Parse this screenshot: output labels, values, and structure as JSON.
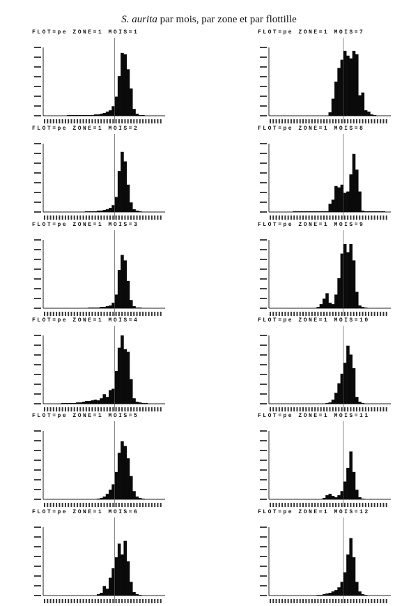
{
  "title": {
    "italic": "S. aurita",
    "rest": " par mois, par zone et par flottille"
  },
  "chart_data": [
    {
      "type": "bar",
      "title": "FLOT=pe ZONE=1 MOIS=1",
      "reference_bin": 24,
      "values": [
        0,
        0,
        0,
        0,
        0,
        0,
        0,
        0,
        1,
        1,
        1,
        1,
        1,
        1,
        1,
        1,
        1,
        2,
        2,
        3,
        4,
        6,
        8,
        14,
        28,
        58,
        92,
        90,
        68,
        40,
        10,
        3,
        1,
        1,
        0,
        0,
        0,
        0,
        0,
        0
      ]
    },
    {
      "type": "bar",
      "title": "FLOT=pe ZONE=1 MOIS=2",
      "reference_bin": 24,
      "values": [
        0,
        0,
        0,
        0,
        0,
        0,
        0,
        0,
        0,
        0,
        0,
        0,
        0,
        0,
        1,
        1,
        1,
        1,
        2,
        2,
        3,
        4,
        6,
        10,
        22,
        60,
        88,
        74,
        40,
        14,
        4,
        2,
        1,
        0,
        0,
        0,
        0,
        0,
        0,
        0
      ]
    },
    {
      "type": "bar",
      "title": "FLOT=pe ZONE=1 MOIS=3",
      "reference_bin": 24,
      "values": [
        0,
        0,
        0,
        0,
        0,
        0,
        0,
        0,
        0,
        0,
        0,
        0,
        0,
        0,
        0,
        1,
        1,
        1,
        1,
        2,
        2,
        3,
        4,
        8,
        20,
        56,
        78,
        70,
        40,
        12,
        3,
        1,
        1,
        0,
        0,
        0,
        0,
        0,
        0,
        0
      ]
    },
    {
      "type": "bar",
      "title": "FLOT=pe ZONE=1 MOIS=4",
      "reference_bin": 24,
      "values": [
        0,
        0,
        0,
        0,
        0,
        0,
        1,
        1,
        1,
        1,
        1,
        2,
        2,
        3,
        4,
        4,
        5,
        6,
        5,
        8,
        14,
        10,
        20,
        22,
        48,
        82,
        100,
        80,
        76,
        36,
        8,
        3,
        2,
        1,
        1,
        0,
        0,
        0,
        0,
        0
      ]
    },
    {
      "type": "bar",
      "title": "FLOT=pe ZONE=1 MOIS=5",
      "reference_bin": 24,
      "values": [
        0,
        0,
        0,
        0,
        0,
        0,
        0,
        0,
        0,
        0,
        0,
        0,
        0,
        0,
        0,
        0,
        0,
        0,
        1,
        2,
        4,
        8,
        14,
        22,
        40,
        68,
        85,
        78,
        60,
        34,
        12,
        4,
        2,
        1,
        0,
        0,
        0,
        0,
        0,
        0
      ]
    },
    {
      "type": "bar",
      "title": "FLOT=pe ZONE=1 MOIS=6",
      "reference_bin": 24,
      "values": [
        0,
        0,
        0,
        0,
        0,
        0,
        0,
        0,
        0,
        0,
        0,
        0,
        0,
        0,
        0,
        0,
        0,
        0,
        2,
        4,
        14,
        10,
        26,
        40,
        56,
        76,
        60,
        80,
        50,
        20,
        5,
        2,
        1,
        0,
        0,
        0,
        0,
        0,
        0,
        0
      ]
    },
    {
      "type": "bar",
      "title": "FLOT=pe ZONE=1 MOIS=7",
      "reference_bin": 25,
      "values": [
        0,
        0,
        0,
        0,
        0,
        0,
        0,
        0,
        0,
        0,
        0,
        0,
        0,
        0,
        0,
        0,
        0,
        0,
        0,
        0,
        5,
        25,
        50,
        70,
        82,
        95,
        88,
        84,
        95,
        90,
        30,
        34,
        8,
        6,
        2,
        1,
        0,
        0,
        0,
        0
      ]
    },
    {
      "type": "bar",
      "title": "FLOT=pe ZONE=1 MOIS=8",
      "reference_bin": 25,
      "values": [
        0,
        0,
        0,
        0,
        0,
        0,
        0,
        0,
        1,
        1,
        1,
        1,
        1,
        1,
        1,
        1,
        1,
        1,
        1,
        1,
        12,
        18,
        38,
        36,
        40,
        28,
        30,
        55,
        85,
        62,
        30,
        2,
        1,
        1,
        1,
        1,
        1,
        1,
        1,
        0
      ]
    },
    {
      "type": "bar",
      "title": "FLOT=pe ZONE=1 MOIS=9",
      "reference_bin": 25,
      "values": [
        0,
        0,
        0,
        0,
        0,
        0,
        0,
        0,
        0,
        0,
        0,
        0,
        0,
        0,
        0,
        0,
        2,
        6,
        14,
        22,
        8,
        6,
        20,
        44,
        80,
        94,
        82,
        94,
        70,
        24,
        4,
        2,
        1,
        0,
        0,
        0,
        0,
        0,
        0,
        0
      ]
    },
    {
      "type": "bar",
      "title": "FLOT=pe ZONE=1 MOIS=10",
      "reference_bin": 25,
      "values": [
        0,
        0,
        0,
        0,
        0,
        0,
        0,
        0,
        0,
        0,
        0,
        0,
        0,
        0,
        0,
        0,
        0,
        0,
        0,
        1,
        2,
        6,
        16,
        30,
        44,
        60,
        85,
        72,
        52,
        10,
        3,
        1,
        0,
        0,
        0,
        0,
        0,
        0,
        0,
        0
      ]
    },
    {
      "type": "bar",
      "title": "FLOT=pe ZONE=1 MOIS=11",
      "reference_bin": 25,
      "values": [
        0,
        0,
        0,
        0,
        0,
        0,
        0,
        0,
        0,
        0,
        0,
        0,
        0,
        0,
        0,
        0,
        0,
        0,
        2,
        6,
        8,
        5,
        3,
        6,
        12,
        26,
        46,
        70,
        40,
        14,
        3,
        1,
        0,
        0,
        0,
        0,
        0,
        0,
        0,
        0
      ]
    },
    {
      "type": "bar",
      "title": "FLOT=pe ZONE=1 MOIS=12",
      "reference_bin": 25,
      "values": [
        0,
        0,
        0,
        0,
        0,
        0,
        0,
        0,
        0,
        0,
        0,
        0,
        0,
        0,
        0,
        0,
        1,
        1,
        2,
        3,
        4,
        6,
        8,
        12,
        20,
        34,
        60,
        84,
        56,
        20,
        6,
        2,
        1,
        0,
        0,
        0,
        0,
        0,
        0,
        0
      ]
    }
  ]
}
